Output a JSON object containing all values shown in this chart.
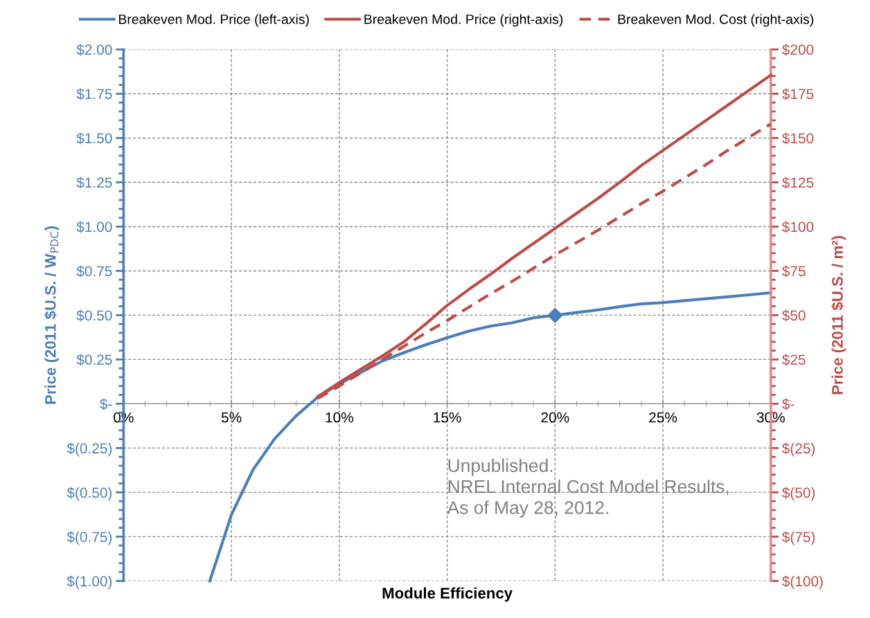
{
  "chart_data": {
    "type": "line",
    "xlabel": "Module Efficiency",
    "ylabel": "Price (2011 $U.S. / W$_{PDC}$)",
    "y2label": "Price (2011 $U.S. / m²)",
    "xlim": [
      0,
      30
    ],
    "xticks": [
      {
        "value": 0,
        "label": "0%"
      },
      {
        "value": 5,
        "label": "5%"
      },
      {
        "value": 10,
        "label": "10%"
      },
      {
        "value": 15,
        "label": "15%"
      },
      {
        "value": 20,
        "label": "20%"
      },
      {
        "value": 25,
        "label": "25%"
      },
      {
        "value": 30,
        "label": "30%"
      }
    ],
    "ylim": [
      -1,
      2
    ],
    "yticks": [
      {
        "value": -1,
        "label": "$(1.00)"
      },
      {
        "value": -0.75,
        "label": "$(0.75)"
      },
      {
        "value": -0.5,
        "label": "$(0.50)"
      },
      {
        "value": -0.25,
        "label": "$(0.25)"
      },
      {
        "value": 0,
        "label": "$-"
      },
      {
        "value": 0.25,
        "label": "$0.25"
      },
      {
        "value": 0.5,
        "label": "$0.50"
      },
      {
        "value": 0.75,
        "label": "$0.75"
      },
      {
        "value": 1,
        "label": "$1.00"
      },
      {
        "value": 1.25,
        "label": "$1.25"
      },
      {
        "value": 1.5,
        "label": "$1.50"
      },
      {
        "value": 1.75,
        "label": "$1.75"
      },
      {
        "value": 2,
        "label": "$2.00"
      }
    ],
    "y2lim": [
      -100,
      200
    ],
    "y2ticks": [
      {
        "value": -100,
        "label": "$(100)"
      },
      {
        "value": -75,
        "label": "$(75)"
      },
      {
        "value": -50,
        "label": "$(50)"
      },
      {
        "value": -25,
        "label": "$(25)"
      },
      {
        "value": 0,
        "label": "$-"
      },
      {
        "value": 25,
        "label": "$25"
      },
      {
        "value": 50,
        "label": "$50"
      },
      {
        "value": 75,
        "label": "$75"
      },
      {
        "value": 100,
        "label": "$100"
      },
      {
        "value": 125,
        "label": "$125"
      },
      {
        "value": 150,
        "label": "$150"
      },
      {
        "value": 175,
        "label": "$175"
      },
      {
        "value": 200,
        "label": "$200"
      }
    ],
    "grid": true,
    "legend": "top",
    "series": [
      {
        "name": "Breakeven Mod. Price (left-axis)",
        "color": "#4a7ebb",
        "line_style": "solid",
        "marker": "none",
        "x": [
          4,
          5,
          6,
          7,
          8,
          9,
          10,
          11,
          12,
          13,
          14,
          15,
          16,
          17,
          18,
          19,
          20,
          21,
          22,
          23,
          24,
          25,
          26,
          27,
          28,
          29,
          30
        ],
        "values": [
          -1.0,
          -0.627,
          -0.373,
          -0.198,
          -0.068,
          0.037,
          0.112,
          0.177,
          0.242,
          0.289,
          0.333,
          0.373,
          0.41,
          0.438,
          0.457,
          0.485,
          0.499,
          0.515,
          0.53,
          0.548,
          0.564,
          0.571,
          0.582,
          0.593,
          0.604,
          0.615,
          0.627
        ]
      },
      {
        "name": "Breakeven Mod. Price (right-axis)",
        "color": "#be4b48",
        "axis": "y2",
        "line_style": "solid",
        "marker": "none",
        "x": [
          9,
          10,
          11,
          12,
          13,
          14,
          15,
          16,
          17,
          18,
          19,
          20,
          21,
          22,
          23,
          24,
          25,
          26,
          27,
          28,
          29,
          30
        ],
        "values": [
          4,
          12,
          19.5,
          27,
          35,
          45,
          55.5,
          64.5,
          73,
          82,
          90.5,
          99,
          107.5,
          116,
          125,
          134.5,
          143,
          151.5,
          160,
          168.5,
          177,
          185.5
        ]
      },
      {
        "name": "Breakeven Mod. Cost (right-axis)",
        "color": "#be4b48",
        "axis": "y2",
        "line_style": "dashed",
        "marker": "none",
        "x": [
          9,
          10,
          11,
          12,
          13,
          14,
          15,
          16,
          17,
          18,
          19,
          20,
          21,
          22,
          23,
          24,
          25,
          26,
          27,
          28,
          29,
          30
        ],
        "values": [
          3,
          10,
          17.5,
          25,
          32.5,
          40,
          47,
          54.5,
          62,
          69,
          76.5,
          84,
          91,
          98,
          105.5,
          113,
          120,
          127.5,
          135,
          143,
          150.5,
          158
        ]
      },
      {
        "type": "scatter",
        "color": "#4a7ebb",
        "marker": "diamond",
        "x": [
          20
        ],
        "values": [
          0.499
        ]
      }
    ],
    "annotations": [
      "Unpublished.\nNREL Internal Cost Model Results,\nAs of May 28, 2012."
    ]
  }
}
